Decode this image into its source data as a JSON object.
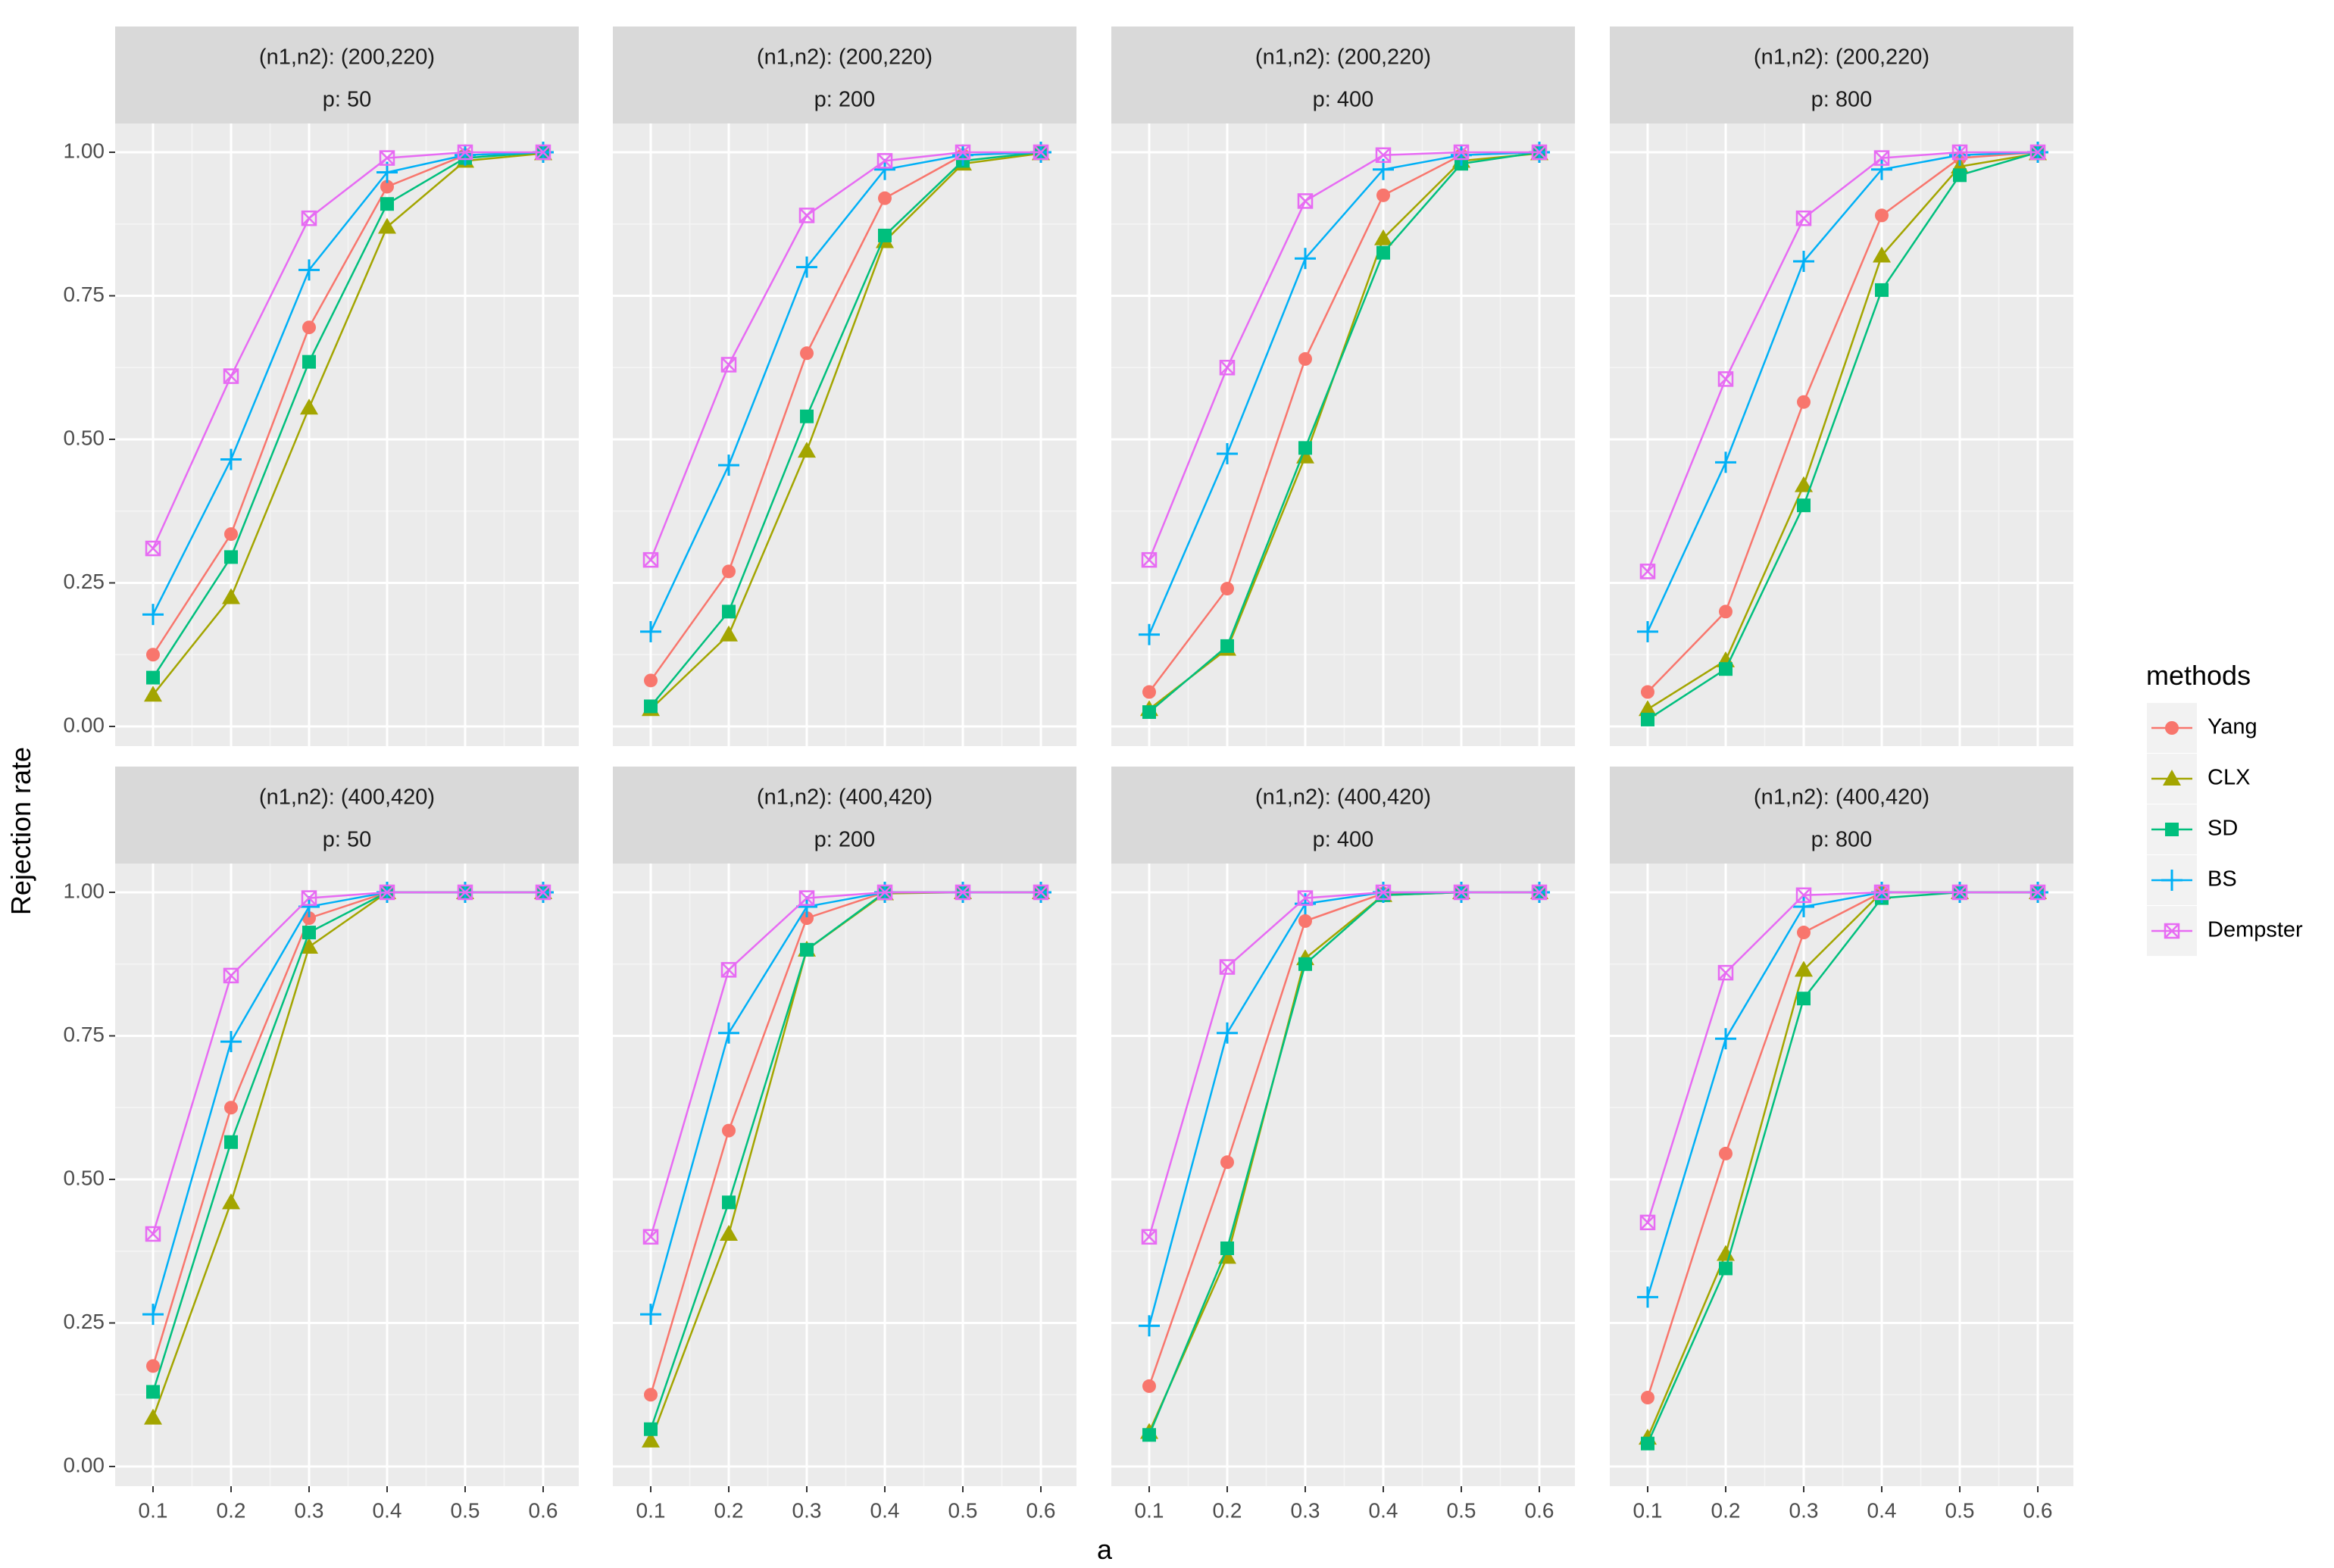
{
  "chart_data": {
    "type": "line",
    "xlabel": "a",
    "ylabel": "Rejection rate",
    "x": [
      0.1,
      0.2,
      0.3,
      0.4,
      0.5,
      0.6
    ],
    "x_tick_labels": [
      "0.1",
      "0.2",
      "0.3",
      "0.4",
      "0.5",
      "0.6"
    ],
    "ylim": [
      0,
      1
    ],
    "y_ticks": [
      0,
      0.25,
      0.5,
      0.75,
      1
    ],
    "y_tick_labels": [
      "0.00",
      "0.25",
      "0.50",
      "0.75",
      "1.00"
    ],
    "legend": {
      "title": "methods",
      "position": "right",
      "entries": [
        {
          "name": "Yang",
          "color": "#F8766D",
          "shape": "circle"
        },
        {
          "name": "CLX",
          "color": "#A3A500",
          "shape": "triangle"
        },
        {
          "name": "SD",
          "color": "#00BF7D",
          "shape": "square"
        },
        {
          "name": "BS",
          "color": "#00B0F6",
          "shape": "plus"
        },
        {
          "name": "Dempster",
          "color": "#E76BF3",
          "shape": "square-cross"
        }
      ]
    },
    "panels": [
      {
        "row": 0,
        "col": 0,
        "strip": [
          "(n1,n2): (200,220)",
          "p: 50"
        ],
        "series": [
          {
            "name": "Yang",
            "values": [
              0.125,
              0.335,
              0.695,
              0.94,
              0.995,
              1.0
            ]
          },
          {
            "name": "CLX",
            "values": [
              0.055,
              0.225,
              0.555,
              0.87,
              0.985,
              0.998
            ]
          },
          {
            "name": "SD",
            "values": [
              0.085,
              0.295,
              0.635,
              0.91,
              0.99,
              1.0
            ]
          },
          {
            "name": "BS",
            "values": [
              0.195,
              0.465,
              0.795,
              0.965,
              0.995,
              1.0
            ]
          },
          {
            "name": "Dempster",
            "values": [
              0.31,
              0.61,
              0.885,
              0.99,
              1.0,
              1.0
            ]
          }
        ]
      },
      {
        "row": 0,
        "col": 1,
        "strip": [
          "(n1,n2): (200,220)",
          "p: 200"
        ],
        "series": [
          {
            "name": "Yang",
            "values": [
              0.08,
              0.27,
              0.65,
              0.92,
              0.995,
              1.0
            ]
          },
          {
            "name": "CLX",
            "values": [
              0.03,
              0.16,
              0.48,
              0.845,
              0.98,
              0.998
            ]
          },
          {
            "name": "SD",
            "values": [
              0.035,
              0.2,
              0.54,
              0.855,
              0.985,
              1.0
            ]
          },
          {
            "name": "BS",
            "values": [
              0.165,
              0.455,
              0.8,
              0.97,
              0.995,
              1.0
            ]
          },
          {
            "name": "Dempster",
            "values": [
              0.29,
              0.63,
              0.89,
              0.985,
              1.0,
              1.0
            ]
          }
        ]
      },
      {
        "row": 0,
        "col": 2,
        "strip": [
          "(n1,n2): (200,220)",
          "p: 400"
        ],
        "series": [
          {
            "name": "Yang",
            "values": [
              0.06,
              0.24,
              0.64,
              0.925,
              0.995,
              1.0
            ]
          },
          {
            "name": "CLX",
            "values": [
              0.03,
              0.135,
              0.47,
              0.85,
              0.985,
              0.998
            ]
          },
          {
            "name": "SD",
            "values": [
              0.025,
              0.14,
              0.485,
              0.825,
              0.98,
              1.0
            ]
          },
          {
            "name": "BS",
            "values": [
              0.16,
              0.475,
              0.815,
              0.97,
              0.995,
              1.0
            ]
          },
          {
            "name": "Dempster",
            "values": [
              0.29,
              0.625,
              0.915,
              0.995,
              1.0,
              1.0
            ]
          }
        ]
      },
      {
        "row": 0,
        "col": 3,
        "strip": [
          "(n1,n2): (200,220)",
          "p: 800"
        ],
        "series": [
          {
            "name": "Yang",
            "values": [
              0.06,
              0.2,
              0.565,
              0.89,
              0.99,
              1.0
            ]
          },
          {
            "name": "CLX",
            "values": [
              0.03,
              0.115,
              0.42,
              0.82,
              0.975,
              0.998
            ]
          },
          {
            "name": "SD",
            "values": [
              0.012,
              0.1,
              0.385,
              0.76,
              0.96,
              1.0
            ]
          },
          {
            "name": "BS",
            "values": [
              0.165,
              0.46,
              0.81,
              0.97,
              0.995,
              1.0
            ]
          },
          {
            "name": "Dempster",
            "values": [
              0.27,
              0.605,
              0.885,
              0.99,
              1.0,
              1.0
            ]
          }
        ]
      },
      {
        "row": 1,
        "col": 0,
        "strip": [
          "(n1,n2): (400,420)",
          "p: 50"
        ],
        "series": [
          {
            "name": "Yang",
            "values": [
              0.175,
              0.625,
              0.955,
              1.0,
              1.0,
              1.0
            ]
          },
          {
            "name": "CLX",
            "values": [
              0.085,
              0.46,
              0.905,
              1.0,
              1.0,
              1.0
            ]
          },
          {
            "name": "SD",
            "values": [
              0.13,
              0.565,
              0.93,
              1.0,
              1.0,
              1.0
            ]
          },
          {
            "name": "BS",
            "values": [
              0.265,
              0.74,
              0.975,
              1.0,
              1.0,
              1.0
            ]
          },
          {
            "name": "Dempster",
            "values": [
              0.405,
              0.855,
              0.99,
              1.0,
              1.0,
              1.0
            ]
          }
        ]
      },
      {
        "row": 1,
        "col": 1,
        "strip": [
          "(n1,n2): (400,420)",
          "p: 200"
        ],
        "series": [
          {
            "name": "Yang",
            "values": [
              0.125,
              0.585,
              0.955,
              1.0,
              1.0,
              1.0
            ]
          },
          {
            "name": "CLX",
            "values": [
              0.045,
              0.405,
              0.9,
              0.998,
              1.0,
              1.0
            ]
          },
          {
            "name": "SD",
            "values": [
              0.065,
              0.46,
              0.9,
              1.0,
              1.0,
              1.0
            ]
          },
          {
            "name": "BS",
            "values": [
              0.265,
              0.755,
              0.975,
              1.0,
              1.0,
              1.0
            ]
          },
          {
            "name": "Dempster",
            "values": [
              0.4,
              0.865,
              0.99,
              1.0,
              1.0,
              1.0
            ]
          }
        ]
      },
      {
        "row": 1,
        "col": 2,
        "strip": [
          "(n1,n2): (400,420)",
          "p: 400"
        ],
        "series": [
          {
            "name": "Yang",
            "values": [
              0.14,
              0.53,
              0.95,
              0.998,
              1.0,
              1.0
            ]
          },
          {
            "name": "CLX",
            "values": [
              0.06,
              0.365,
              0.885,
              0.995,
              1.0,
              1.0
            ]
          },
          {
            "name": "SD",
            "values": [
              0.055,
              0.38,
              0.875,
              0.995,
              1.0,
              1.0
            ]
          },
          {
            "name": "BS",
            "values": [
              0.245,
              0.755,
              0.98,
              1.0,
              1.0,
              1.0
            ]
          },
          {
            "name": "Dempster",
            "values": [
              0.4,
              0.87,
              0.99,
              1.0,
              1.0,
              1.0
            ]
          }
        ]
      },
      {
        "row": 1,
        "col": 3,
        "strip": [
          "(n1,n2): (400,420)",
          "p: 800"
        ],
        "series": [
          {
            "name": "Yang",
            "values": [
              0.12,
              0.545,
              0.93,
              1.0,
              1.0,
              1.0
            ]
          },
          {
            "name": "CLX",
            "values": [
              0.05,
              0.37,
              0.865,
              1.0,
              1.0,
              1.0
            ]
          },
          {
            "name": "SD",
            "values": [
              0.04,
              0.345,
              0.815,
              0.99,
              1.0,
              1.0
            ]
          },
          {
            "name": "BS",
            "values": [
              0.295,
              0.745,
              0.975,
              1.0,
              1.0,
              1.0
            ]
          },
          {
            "name": "Dempster",
            "values": [
              0.425,
              0.86,
              0.995,
              1.0,
              1.0,
              1.0
            ]
          }
        ]
      }
    ]
  }
}
